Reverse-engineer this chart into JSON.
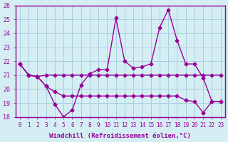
{
  "xlabel": "Windchill (Refroidissement éolien,°C)",
  "ylabel": "",
  "background_color": "#d4eef4",
  "line_color": "#990099",
  "grid_color": "#aaccdd",
  "xlim": [
    -0.5,
    23.5
  ],
  "ylim": [
    18,
    26
  ],
  "xticks": [
    0,
    1,
    2,
    3,
    4,
    5,
    6,
    7,
    8,
    9,
    10,
    11,
    12,
    13,
    14,
    15,
    16,
    17,
    18,
    19,
    20,
    21,
    22,
    23
  ],
  "yticks": [
    18,
    19,
    20,
    21,
    22,
    23,
    24,
    25,
    26
  ],
  "line1": [
    21.8,
    21.0,
    20.9,
    20.2,
    18.9,
    18.0,
    18.5,
    20.3,
    21.1,
    21.4,
    21.4,
    25.1,
    22.0,
    21.5,
    21.6,
    21.8,
    24.4,
    25.7,
    23.5,
    21.8,
    21.8,
    20.8,
    19.1,
    19.1
  ],
  "line2": [
    21.8,
    21.0,
    20.9,
    21.0,
    21.0,
    21.0,
    21.0,
    21.0,
    21.0,
    21.0,
    21.0,
    21.0,
    21.0,
    21.0,
    21.0,
    21.0,
    21.0,
    21.0,
    21.0,
    21.0,
    21.0,
    21.0,
    21.0,
    21.0
  ],
  "line3": [
    21.8,
    21.0,
    20.9,
    20.2,
    19.8,
    19.5,
    19.5,
    19.5,
    19.5,
    19.5,
    19.5,
    19.5,
    19.5,
    19.5,
    19.5,
    19.5,
    19.5,
    19.5,
    19.5,
    19.2,
    19.1,
    18.3,
    19.1,
    19.1
  ]
}
